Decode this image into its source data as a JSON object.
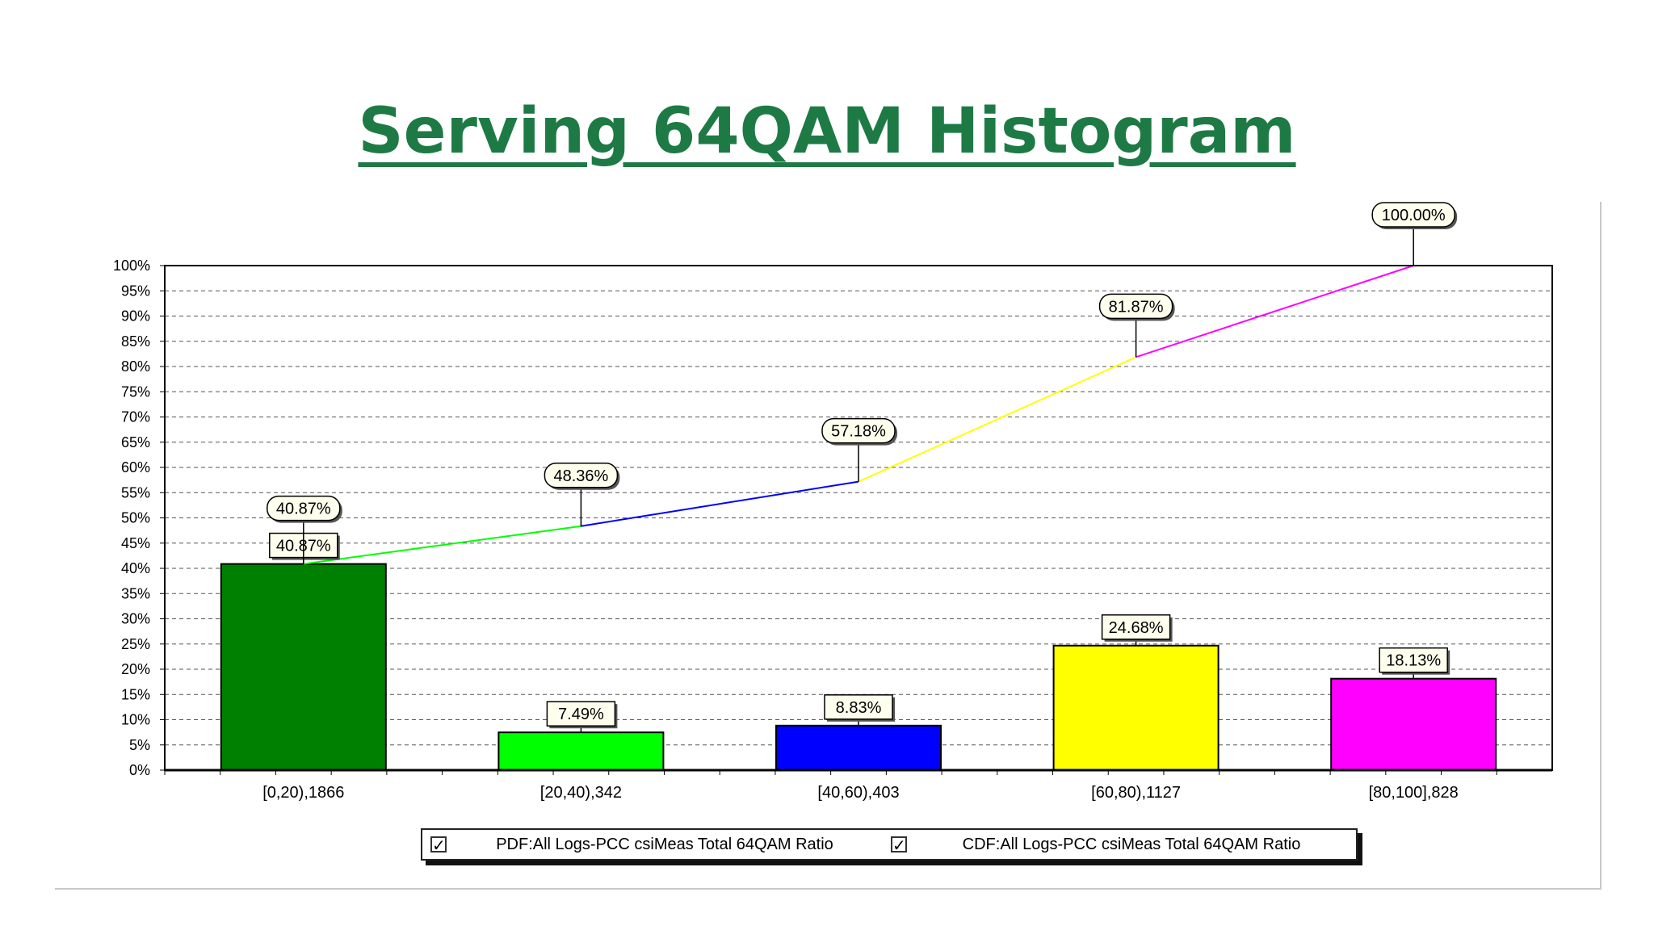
{
  "title": "Serving 64QAM Histogram",
  "chart_data": {
    "type": "bar",
    "title": "Serving 64QAM Histogram",
    "categories": [
      "[0,20),1866",
      "[20,40),342",
      "[40,60),403",
      "[60,80),1127",
      "[80,100],828"
    ],
    "series": [
      {
        "name": "PDF:All Logs-PCC csiMeas Total 64QAM Ratio",
        "kind": "bar",
        "values": [
          40.87,
          7.49,
          8.83,
          24.68,
          18.13
        ],
        "labels": [
          "40.87%",
          "7.49%",
          "8.83%",
          "24.68%",
          "18.13%"
        ],
        "colors": [
          "#008000",
          "#00ff00",
          "#0000ff",
          "#ffff00",
          "#ff00ff"
        ]
      },
      {
        "name": "CDF:All Logs-PCC csiMeas Total 64QAM Ratio",
        "kind": "line",
        "values": [
          40.87,
          48.36,
          57.18,
          81.87,
          100.0
        ],
        "labels": [
          "40.87%",
          "48.36%",
          "57.18%",
          "81.87%",
          "100.00%"
        ],
        "colors": [
          "#00ff00",
          "#0000ff",
          "#ffff00",
          "#ff00ff"
        ]
      }
    ],
    "yticks": [
      "0%",
      "5%",
      "10%",
      "15%",
      "20%",
      "25%",
      "30%",
      "35%",
      "40%",
      "45%",
      "50%",
      "55%",
      "60%",
      "65%",
      "70%",
      "75%",
      "80%",
      "85%",
      "90%",
      "95%",
      "100%"
    ],
    "ylim": [
      0,
      100
    ],
    "grid": true,
    "legend_position": "bottom"
  },
  "legend": {
    "pdf_label": "PDF:All Logs-PCC csiMeas Total 64QAM Ratio",
    "cdf_label": "CDF:All Logs-PCC csiMeas Total 64QAM Ratio",
    "pdf_checked": true,
    "cdf_checked": true,
    "check_glyph": "✓"
  }
}
